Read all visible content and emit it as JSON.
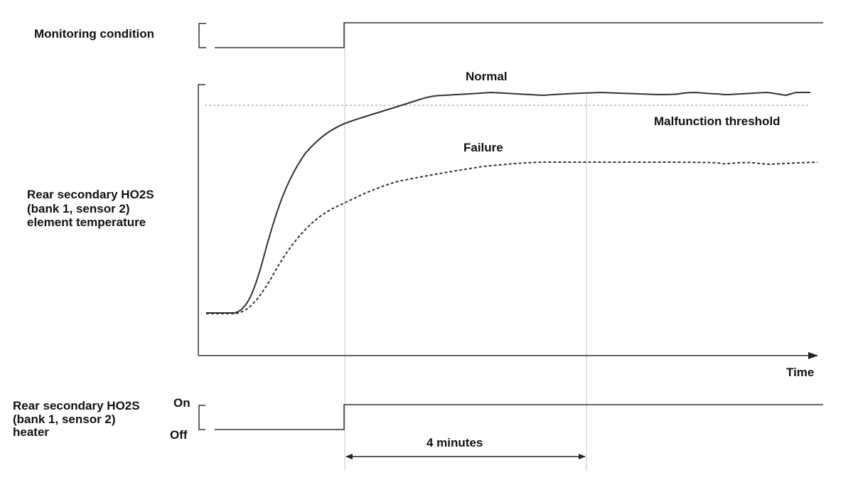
{
  "labels": {
    "monitoring_condition": "Monitoring condition",
    "normal": "Normal",
    "malfunction_threshold": "Malfunction threshold",
    "failure": "Failure",
    "temp_line1": "Rear secondary HO2S",
    "temp_line2": "(bank 1, sensor 2)",
    "temp_line3": "element temperature",
    "time": "Time",
    "heater_line1": "Rear secondary HO2S",
    "heater_line2": "(bank 1, sensor 2)",
    "heater_line3": "heater",
    "on": "On",
    "off": "Off",
    "duration": "4 minutes"
  },
  "colors": {
    "signal": "#333333",
    "threshold": "#b5b5b5",
    "guide": "#c4c4c4",
    "text": "#111111"
  }
}
